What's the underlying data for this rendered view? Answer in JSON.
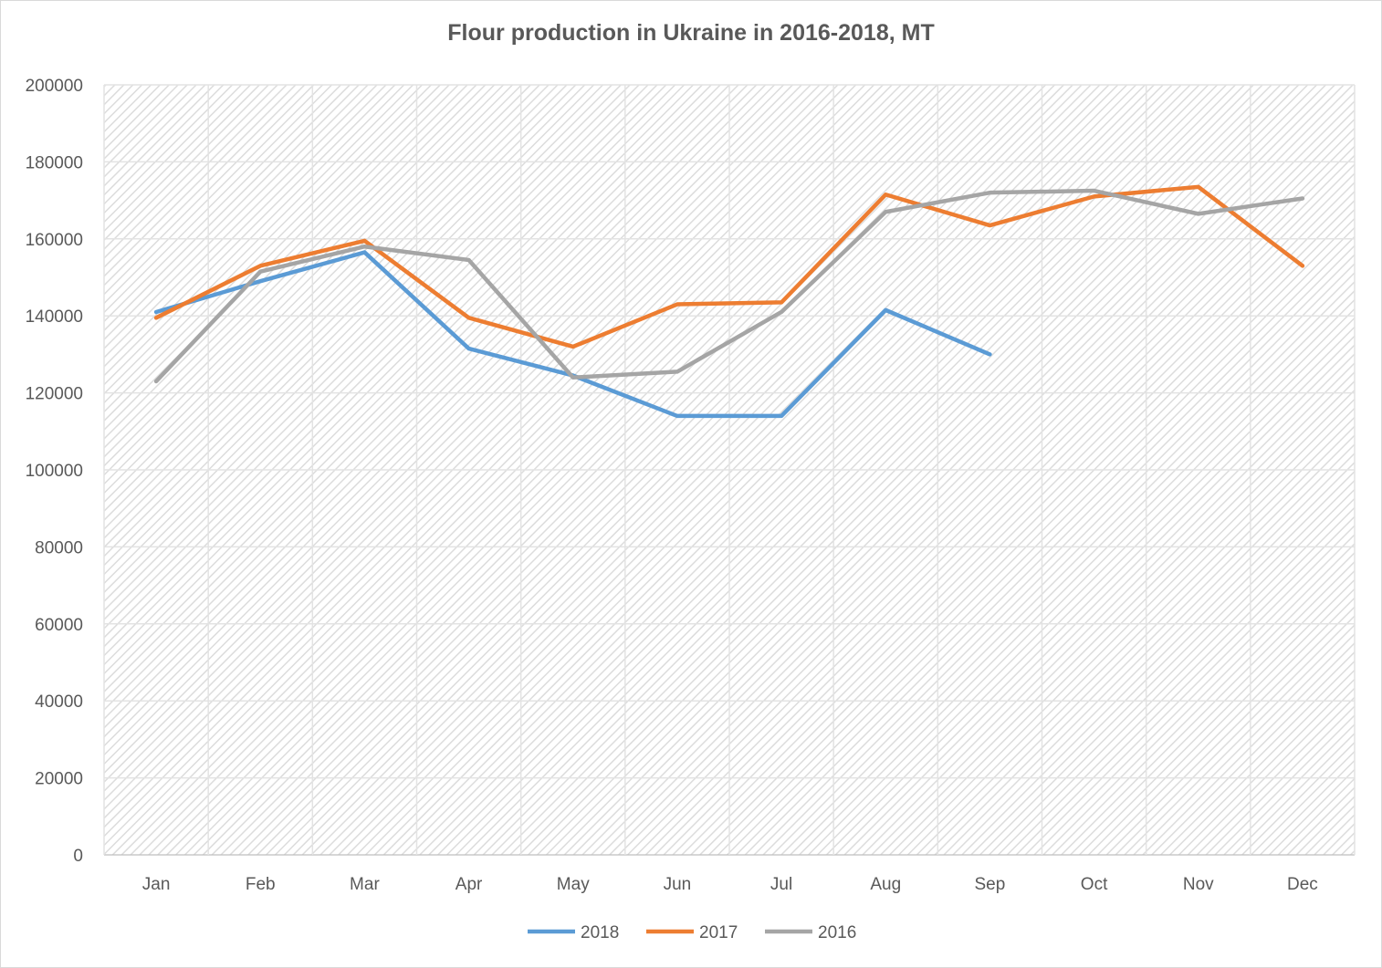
{
  "chart_data": {
    "type": "line",
    "title": "Flour production in Ukraine in 2016-2018, MT",
    "xlabel": "",
    "ylabel": "",
    "categories": [
      "Jan",
      "Feb",
      "Mar",
      "Apr",
      "May",
      "Jun",
      "Jul",
      "Aug",
      "Sep",
      "Oct",
      "Nov",
      "Dec"
    ],
    "ylim": [
      0,
      200000
    ],
    "yticks": [
      0,
      20000,
      40000,
      60000,
      80000,
      100000,
      120000,
      140000,
      160000,
      180000,
      200000
    ],
    "grid": true,
    "legend_position": "bottom",
    "series": [
      {
        "name": "2018",
        "color": "#5b9bd5",
        "values": [
          141000,
          149000,
          156500,
          131500,
          124500,
          114000,
          114000,
          141500,
          130000,
          null,
          null,
          null
        ]
      },
      {
        "name": "2017",
        "color": "#ed7d31",
        "values": [
          139500,
          153000,
          159500,
          139500,
          132000,
          143000,
          143500,
          171500,
          163500,
          171000,
          173500,
          153000
        ]
      },
      {
        "name": "2016",
        "color": "#a5a5a5",
        "values": [
          123000,
          151500,
          158000,
          154500,
          124000,
          125500,
          141000,
          167000,
          172000,
          172500,
          166500,
          170500
        ]
      }
    ]
  }
}
